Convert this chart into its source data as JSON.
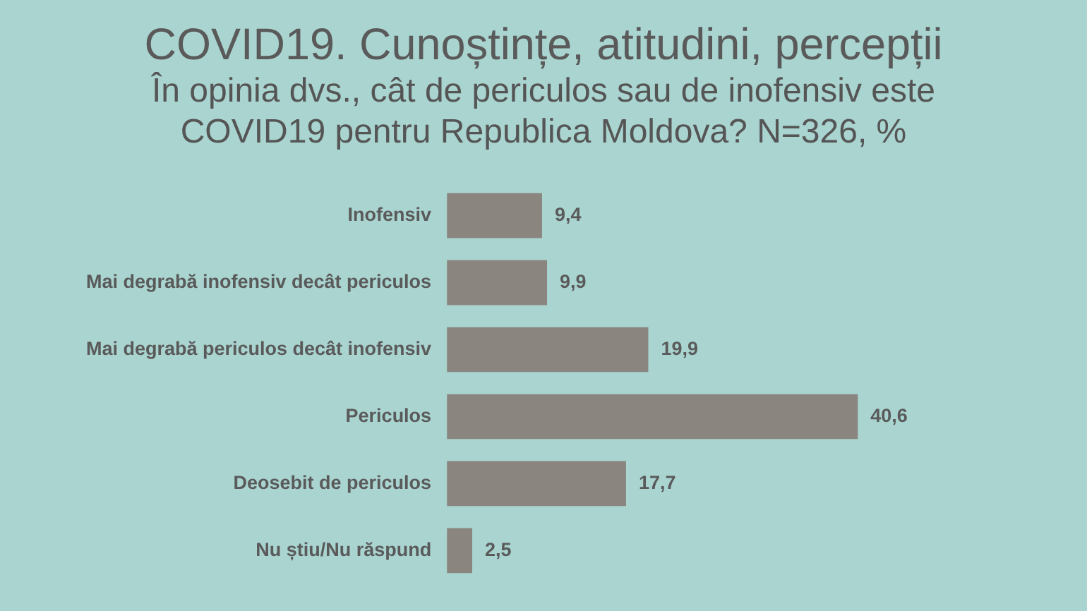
{
  "chart_data": {
    "type": "bar",
    "orientation": "horizontal",
    "title": "COVID19. Cunoștințe, atitudini, percepții",
    "subtitle": "În opinia dvs., cât de periculos sau de inofensiv este COVID19 pentru Republica Moldova? N=326, %",
    "categories": [
      "Inofensiv",
      "Mai degrabă inofensiv decât periculos",
      "Mai degrabă periculos decât inofensiv",
      "Periculos",
      "Deosebit de periculos",
      "Nu știu/Nu răspund"
    ],
    "values": [
      9.4,
      9.9,
      19.9,
      40.6,
      17.7,
      2.5
    ],
    "value_labels": [
      "9,4",
      "9,9",
      "19,9",
      "40,6",
      "17,7",
      "2,5"
    ],
    "color": "#8b8580"
  }
}
